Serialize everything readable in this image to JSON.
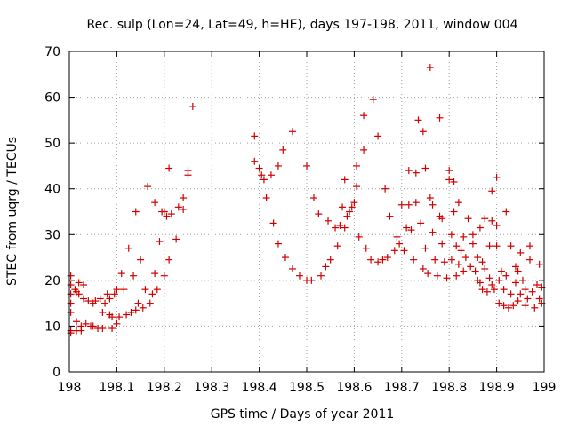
{
  "chart_data": {
    "type": "scatter",
    "title": "Rec. sulp (Lon=24, Lat=49, h=HE), days 197-198, 2011, window 004",
    "xlabel": "GPS time / Days of year 2011",
    "ylabel": "STEC from uqrg / TECUs",
    "xlim": [
      198,
      199
    ],
    "ylim": [
      0,
      70
    ],
    "x_ticks": [
      "198",
      "198.1",
      "198.2",
      "198.3",
      "198.4",
      "198.5",
      "198.6",
      "198.7",
      "198.8",
      "198.9",
      "199"
    ],
    "y_ticks": [
      "0",
      "10",
      "20",
      "30",
      "40",
      "50",
      "60",
      "70"
    ],
    "grid": true,
    "marker": "+",
    "color": "#d00000",
    "points": [
      [
        198.003,
        21
      ],
      [
        198.003,
        19
      ],
      [
        198.003,
        17
      ],
      [
        198.003,
        15
      ],
      [
        198.003,
        13
      ],
      [
        198.003,
        9
      ],
      [
        198.003,
        8.5
      ],
      [
        198.012,
        18
      ],
      [
        198.015,
        17.5
      ],
      [
        198.015,
        11
      ],
      [
        198.015,
        9
      ],
      [
        198.02,
        17
      ],
      [
        198.02,
        19.5
      ],
      [
        198.025,
        10
      ],
      [
        198.025,
        9
      ],
      [
        198.03,
        16
      ],
      [
        198.03,
        19
      ],
      [
        198.035,
        10.5
      ],
      [
        198.04,
        15.5
      ],
      [
        198.045,
        10
      ],
      [
        198.05,
        15
      ],
      [
        198.05,
        10
      ],
      [
        198.055,
        15.5
      ],
      [
        198.06,
        9.5
      ],
      [
        198.065,
        16
      ],
      [
        198.07,
        9.5
      ],
      [
        198.07,
        13
      ],
      [
        198.075,
        15
      ],
      [
        198.08,
        17
      ],
      [
        198.085,
        16
      ],
      [
        198.085,
        12.5
      ],
      [
        198.09,
        9.5
      ],
      [
        198.09,
        12
      ],
      [
        198.095,
        17
      ],
      [
        198.1,
        18
      ],
      [
        198.1,
        10.5
      ],
      [
        198.105,
        12
      ],
      [
        198.11,
        21.5
      ],
      [
        198.115,
        18
      ],
      [
        198.12,
        12.5
      ],
      [
        198.125,
        27
      ],
      [
        198.13,
        13
      ],
      [
        198.135,
        21
      ],
      [
        198.14,
        13.5
      ],
      [
        198.14,
        35
      ],
      [
        198.145,
        15
      ],
      [
        198.15,
        24.5
      ],
      [
        198.155,
        14
      ],
      [
        198.16,
        18
      ],
      [
        198.165,
        40.5
      ],
      [
        198.17,
        15
      ],
      [
        198.175,
        17
      ],
      [
        198.18,
        21.5
      ],
      [
        198.18,
        37
      ],
      [
        198.185,
        18
      ],
      [
        198.19,
        28.5
      ],
      [
        198.195,
        35
      ],
      [
        198.2,
        21
      ],
      [
        198.2,
        35
      ],
      [
        198.205,
        34
      ],
      [
        198.21,
        24.5
      ],
      [
        198.21,
        44.5
      ],
      [
        198.215,
        34.5
      ],
      [
        198.225,
        29
      ],
      [
        198.23,
        36
      ],
      [
        198.24,
        35.5
      ],
      [
        198.24,
        38
      ],
      [
        198.25,
        43
      ],
      [
        198.25,
        44
      ],
      [
        198.26,
        58
      ],
      [
        198.39,
        51.5
      ],
      [
        198.39,
        46
      ],
      [
        198.4,
        44.5
      ],
      [
        198.405,
        43
      ],
      [
        198.41,
        42
      ],
      [
        198.415,
        38
      ],
      [
        198.425,
        43
      ],
      [
        198.43,
        32.5
      ],
      [
        198.44,
        45
      ],
      [
        198.44,
        28
      ],
      [
        198.45,
        48.5
      ],
      [
        198.455,
        25
      ],
      [
        198.47,
        52.5
      ],
      [
        198.47,
        22.5
      ],
      [
        198.485,
        21
      ],
      [
        198.5,
        20
      ],
      [
        198.5,
        45
      ],
      [
        198.51,
        20
      ],
      [
        198.515,
        38
      ],
      [
        198.525,
        34.5
      ],
      [
        198.53,
        21
      ],
      [
        198.54,
        23
      ],
      [
        198.545,
        33
      ],
      [
        198.55,
        24.5
      ],
      [
        198.56,
        31.5
      ],
      [
        198.565,
        27.5
      ],
      [
        198.57,
        32
      ],
      [
        198.575,
        36
      ],
      [
        198.58,
        42
      ],
      [
        198.58,
        31.5
      ],
      [
        198.585,
        34
      ],
      [
        198.59,
        35
      ],
      [
        198.595,
        36
      ],
      [
        198.6,
        37
      ],
      [
        198.605,
        45
      ],
      [
        198.605,
        40.5
      ],
      [
        198.61,
        29.5
      ],
      [
        198.62,
        48.5
      ],
      [
        198.62,
        56
      ],
      [
        198.625,
        27
      ],
      [
        198.635,
        24.5
      ],
      [
        198.64,
        59.5
      ],
      [
        198.65,
        51.5
      ],
      [
        198.65,
        24
      ],
      [
        198.66,
        24.5
      ],
      [
        198.665,
        40
      ],
      [
        198.67,
        25
      ],
      [
        198.675,
        34
      ],
      [
        198.685,
        26.5
      ],
      [
        198.69,
        29.5
      ],
      [
        198.695,
        28
      ],
      [
        198.7,
        36.5
      ],
      [
        198.705,
        26.5
      ],
      [
        198.71,
        31.5
      ],
      [
        198.715,
        36.5
      ],
      [
        198.715,
        44
      ],
      [
        198.72,
        31
      ],
      [
        198.725,
        24.5
      ],
      [
        198.73,
        43.5
      ],
      [
        198.73,
        37
      ],
      [
        198.735,
        55
      ],
      [
        198.74,
        32.5
      ],
      [
        198.745,
        22.5
      ],
      [
        198.745,
        52.5
      ],
      [
        198.75,
        44.5
      ],
      [
        198.75,
        27
      ],
      [
        198.755,
        21.5
      ],
      [
        198.76,
        66.5
      ],
      [
        198.76,
        38
      ],
      [
        198.765,
        36.5
      ],
      [
        198.765,
        30.5
      ],
      [
        198.77,
        24.5
      ],
      [
        198.775,
        21
      ],
      [
        198.78,
        55.5
      ],
      [
        198.78,
        34
      ],
      [
        198.785,
        33.5
      ],
      [
        198.785,
        28
      ],
      [
        198.79,
        24
      ],
      [
        198.795,
        20.5
      ],
      [
        198.8,
        44
      ],
      [
        198.8,
        42
      ],
      [
        198.805,
        30
      ],
      [
        198.805,
        24.5
      ],
      [
        198.81,
        41.5
      ],
      [
        198.81,
        35
      ],
      [
        198.815,
        27.5
      ],
      [
        198.815,
        21
      ],
      [
        198.82,
        23.5
      ],
      [
        198.82,
        37
      ],
      [
        198.825,
        26.5
      ],
      [
        198.83,
        29.5
      ],
      [
        198.83,
        22
      ],
      [
        198.835,
        25
      ],
      [
        198.84,
        33.5
      ],
      [
        198.845,
        23
      ],
      [
        198.85,
        28
      ],
      [
        198.85,
        30
      ],
      [
        198.855,
        22
      ],
      [
        198.86,
        25
      ],
      [
        198.86,
        20
      ],
      [
        198.865,
        31.5
      ],
      [
        198.865,
        19.5
      ],
      [
        198.87,
        24
      ],
      [
        198.87,
        18
      ],
      [
        198.875,
        33.5
      ],
      [
        198.875,
        22.5
      ],
      [
        198.88,
        17.5
      ],
      [
        198.885,
        27.5
      ],
      [
        198.885,
        20.5
      ],
      [
        198.89,
        39.5
      ],
      [
        198.89,
        33
      ],
      [
        198.89,
        19
      ],
      [
        198.895,
        18
      ],
      [
        198.9,
        42.5
      ],
      [
        198.9,
        27.5
      ],
      [
        198.9,
        32
      ],
      [
        198.905,
        15
      ],
      [
        198.905,
        20
      ],
      [
        198.91,
        22
      ],
      [
        198.915,
        14.5
      ],
      [
        198.915,
        18
      ],
      [
        198.92,
        35
      ],
      [
        198.92,
        21
      ],
      [
        198.925,
        14
      ],
      [
        198.93,
        27.5
      ],
      [
        198.93,
        17
      ],
      [
        198.935,
        14.5
      ],
      [
        198.94,
        23
      ],
      [
        198.94,
        19.5
      ],
      [
        198.945,
        22
      ],
      [
        198.945,
        15.5
      ],
      [
        198.95,
        26
      ],
      [
        198.95,
        17
      ],
      [
        198.955,
        20
      ],
      [
        198.96,
        14.5
      ],
      [
        198.96,
        18
      ],
      [
        198.965,
        16
      ],
      [
        198.97,
        24.5
      ],
      [
        198.97,
        27.5
      ],
      [
        198.975,
        17.5
      ],
      [
        198.98,
        14
      ],
      [
        198.985,
        19
      ],
      [
        198.99,
        23.5
      ],
      [
        198.99,
        16
      ],
      [
        198.995,
        18.5
      ],
      [
        198.995,
        15
      ]
    ]
  }
}
